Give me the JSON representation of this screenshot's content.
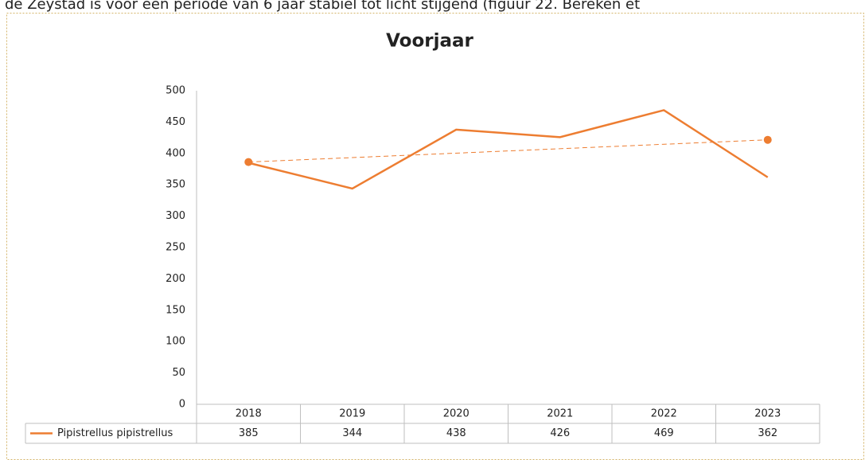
{
  "page_text": "de Zeystad is voor een periode van 6 jaar stabiel tot licht stijgend (figuur 22. Bereken et",
  "chart_data": {
    "type": "line",
    "title": "Voorjaar",
    "categories": [
      "2018",
      "2019",
      "2020",
      "2021",
      "2022",
      "2023"
    ],
    "series": [
      {
        "name": "Pipistrellus pipistrellus",
        "color": "#ed7d31",
        "values": [
          385,
          344,
          438,
          426,
          469,
          362
        ]
      }
    ],
    "trendline": {
      "color": "#ed7d31",
      "values": [
        386.3,
        421.7
      ]
    },
    "ylim": [
      0,
      500
    ],
    "yticks": [
      0,
      50,
      100,
      150,
      200,
      250,
      300,
      350,
      400,
      450,
      500
    ],
    "data_table": true
  }
}
